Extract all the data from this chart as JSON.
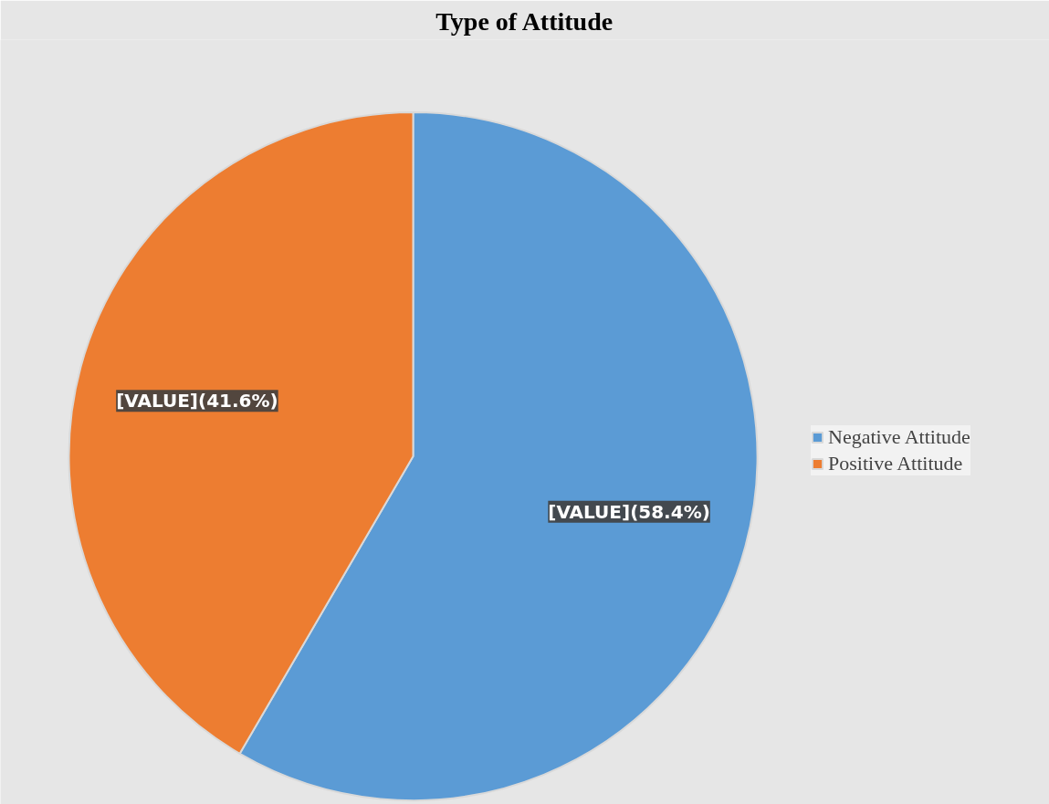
{
  "chart_data": {
    "type": "pie",
    "title": "Type of Attitude",
    "categories": [
      "Negative Attitude",
      "Positive Attitude"
    ],
    "values": [
      58.4,
      41.6
    ],
    "colors": [
      "#5b9bd5",
      "#ed7d31"
    ],
    "value_labels": [
      "[VALUE](58.4%)",
      "[VALUE](41.6%)"
    ],
    "legend": "right"
  }
}
